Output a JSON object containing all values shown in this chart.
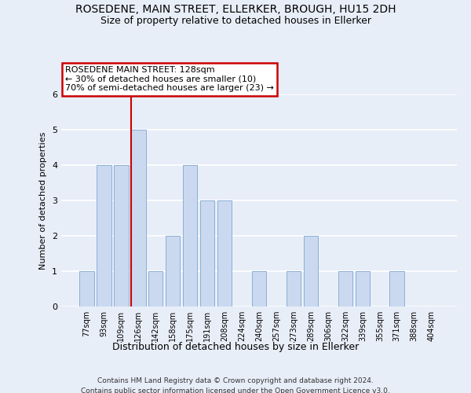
{
  "title1": "ROSEDENE, MAIN STREET, ELLERKER, BROUGH, HU15 2DH",
  "title2": "Size of property relative to detached houses in Ellerker",
  "xlabel": "Distribution of detached houses by size in Ellerker",
  "ylabel": "Number of detached properties",
  "categories": [
    "77sqm",
    "93sqm",
    "109sqm",
    "126sqm",
    "142sqm",
    "158sqm",
    "175sqm",
    "191sqm",
    "208sqm",
    "224sqm",
    "240sqm",
    "257sqm",
    "273sqm",
    "289sqm",
    "306sqm",
    "322sqm",
    "339sqm",
    "355sqm",
    "371sqm",
    "388sqm",
    "404sqm"
  ],
  "values": [
    1,
    4,
    4,
    5,
    1,
    2,
    4,
    3,
    3,
    0,
    1,
    0,
    1,
    2,
    0,
    1,
    1,
    0,
    1,
    0,
    0
  ],
  "bar_color": "#cad9f0",
  "bar_edgecolor": "#8bafd4",
  "redline_index": 3,
  "annotation_line1": "ROSEDENE MAIN STREET: 128sqm",
  "annotation_line2": "← 30% of detached houses are smaller (10)",
  "annotation_line3": "70% of semi-detached houses are larger (23) →",
  "annotation_box_facecolor": "#ffffff",
  "annotation_box_edgecolor": "#cc0000",
  "redline_color": "#cc0000",
  "ylim": [
    0,
    6
  ],
  "yticks": [
    0,
    1,
    2,
    3,
    4,
    5,
    6
  ],
  "footnote1": "Contains HM Land Registry data © Crown copyright and database right 2024.",
  "footnote2": "Contains public sector information licensed under the Open Government Licence v3.0.",
  "background_color": "#e8eef8",
  "grid_color": "#ffffff",
  "title_fontsize": 10,
  "subtitle_fontsize": 9,
  "tick_fontsize": 7,
  "ylabel_fontsize": 8,
  "xlabel_fontsize": 9,
  "footnote_fontsize": 6.5,
  "annotation_fontsize": 8
}
